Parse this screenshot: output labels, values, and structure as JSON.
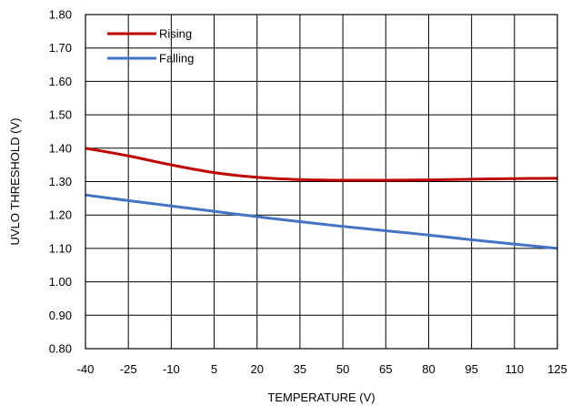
{
  "chart_data": {
    "type": "line",
    "title": "",
    "xlabel": "TEMPERATURE (V)",
    "ylabel": "UVLO THRESHOLD (V)",
    "xlim": [
      -40,
      125
    ],
    "ylim": [
      0.8,
      1.8
    ],
    "x_ticks": [
      "-40",
      "-25",
      "-10",
      "5",
      "20",
      "35",
      "50",
      "65",
      "80",
      "95",
      "110",
      "125"
    ],
    "y_ticks": [
      "0.80",
      "0.90",
      "1.00",
      "1.10",
      "1.20",
      "1.30",
      "1.40",
      "1.50",
      "1.60",
      "1.70",
      "1.80"
    ],
    "grid": true,
    "legend_position": "top-left",
    "series": [
      {
        "name": "Rising",
        "color": "#c00000",
        "x": [
          -40,
          -25,
          -10,
          5,
          20,
          35,
          50,
          65,
          80,
          95,
          110,
          125
        ],
        "y": [
          1.4,
          1.377,
          1.35,
          1.327,
          1.313,
          1.306,
          1.304,
          1.304,
          1.305,
          1.307,
          1.309,
          1.31
        ]
      },
      {
        "name": "Falling",
        "color": "#4472c4",
        "x": [
          -40,
          -25,
          -10,
          5,
          20,
          35,
          50,
          65,
          80,
          95,
          110,
          125
        ],
        "y": [
          1.26,
          1.243,
          1.227,
          1.211,
          1.195,
          1.18,
          1.166,
          1.153,
          1.14,
          1.126,
          1.113,
          1.1
        ]
      }
    ]
  }
}
